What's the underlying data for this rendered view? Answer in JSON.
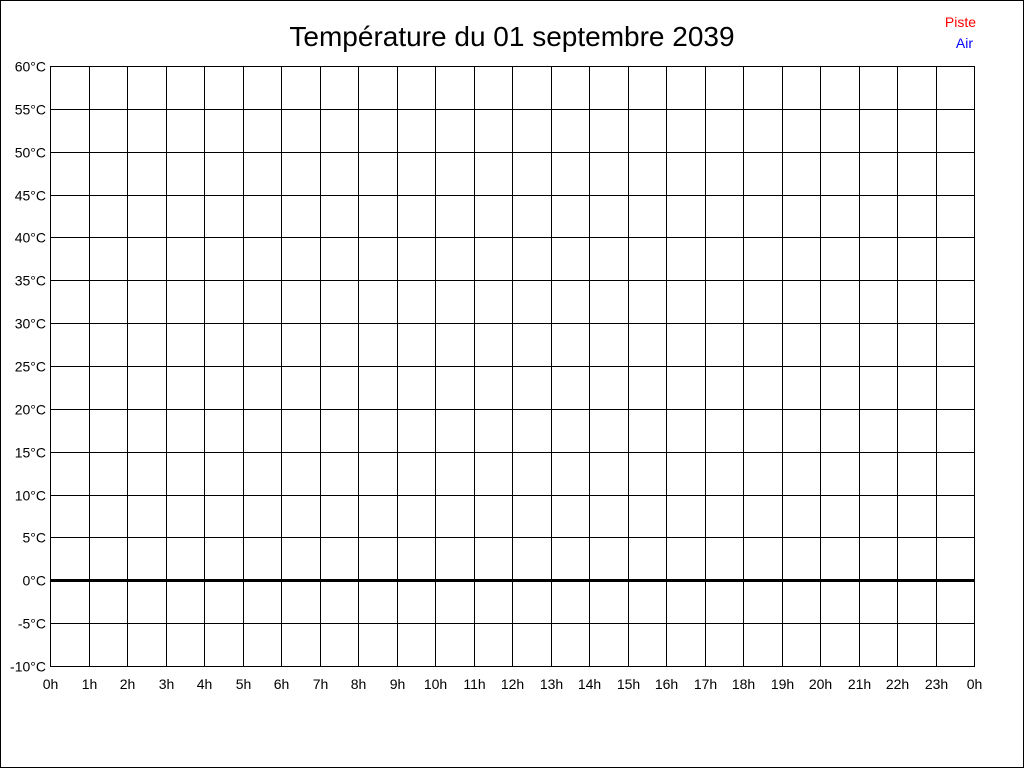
{
  "chart_data": {
    "type": "line",
    "title": "Température du 01 septembre 2039",
    "xlabel": "",
    "ylabel": "",
    "x_ticks": [
      "0h",
      "1h",
      "2h",
      "3h",
      "4h",
      "5h",
      "6h",
      "7h",
      "8h",
      "9h",
      "10h",
      "11h",
      "12h",
      "13h",
      "14h",
      "15h",
      "16h",
      "17h",
      "18h",
      "19h",
      "20h",
      "21h",
      "22h",
      "23h",
      "0h"
    ],
    "y_ticks": [
      "60°C",
      "55°C",
      "50°C",
      "45°C",
      "40°C",
      "35°C",
      "30°C",
      "25°C",
      "20°C",
      "15°C",
      "10°C",
      "5°C",
      "0°C",
      "-5°C",
      "-10°C"
    ],
    "ylim": [
      -10,
      60
    ],
    "xlim": [
      0,
      24
    ],
    "grid": true,
    "legend_placement": "top-right",
    "series": [
      {
        "name": "Piste",
        "color": "#ff0000",
        "values": []
      },
      {
        "name": "Air",
        "color": "#0000ff",
        "values": []
      }
    ],
    "zero_line_color": "#000000"
  }
}
